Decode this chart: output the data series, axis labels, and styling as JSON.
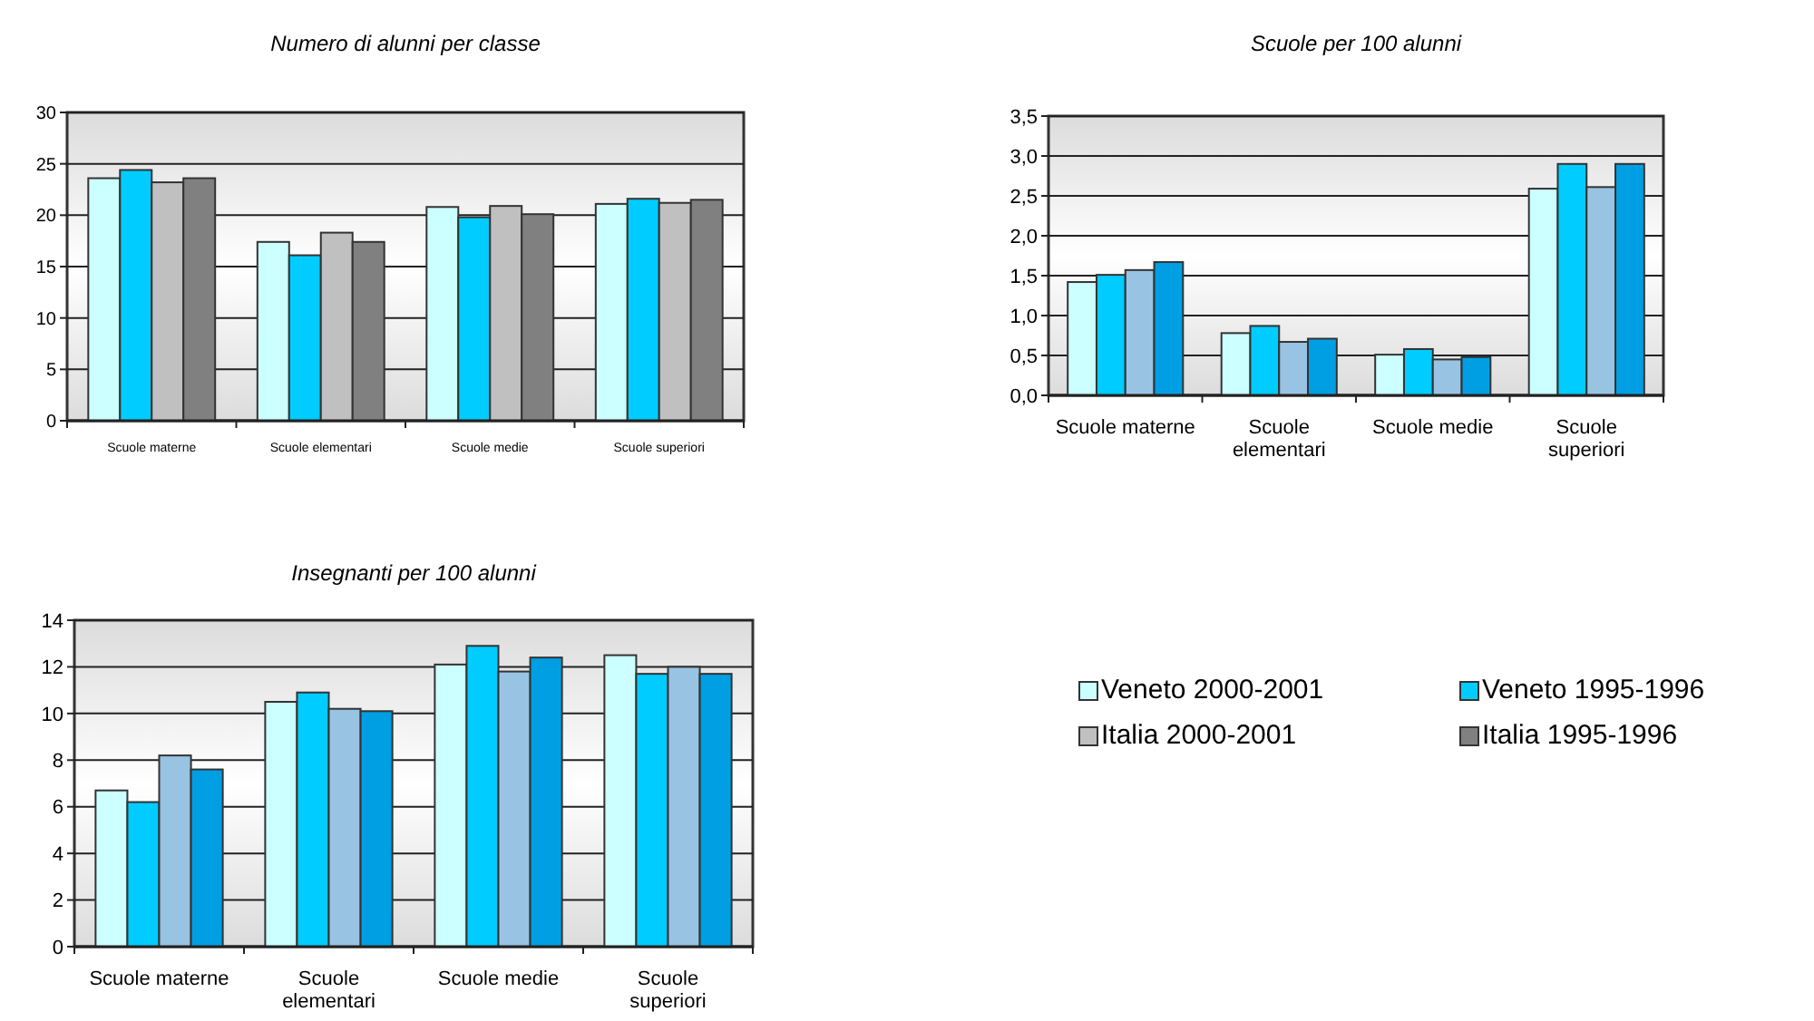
{
  "chart_data": [
    {
      "type": "bar",
      "title": "Numero di alunni per classe",
      "categories": [
        "Scuole materne",
        "Scuole elementari",
        "Scuole medie",
        "Scuole superiori"
      ],
      "series": [
        {
          "name": "Veneto 2000-2001",
          "color": "#ccffff",
          "values": [
            23.6,
            17.4,
            20.8,
            21.1
          ]
        },
        {
          "name": "Veneto 1995-1996",
          "color": "#00ccff",
          "values": [
            24.4,
            16.1,
            19.8,
            21.6
          ]
        },
        {
          "name": "Italia 2000-2001",
          "color": "#c0c0c0",
          "values": [
            23.2,
            18.3,
            20.9,
            21.2
          ]
        },
        {
          "name": "Italia 1995-1996",
          "color": "#808080",
          "values": [
            23.6,
            17.4,
            20.1,
            21.5
          ]
        }
      ],
      "ylim": [
        0,
        30
      ],
      "yticks": [
        0,
        5,
        10,
        15,
        20,
        25,
        30
      ],
      "grid": "y",
      "legend": "bottom right"
    },
    {
      "type": "bar",
      "title": "Scuole per 100 alunni",
      "categories": [
        "Scuole materne",
        "Scuole elementari",
        "Scuole medie",
        "Scuole superiori"
      ],
      "series": [
        {
          "color": "#ccffff",
          "values": [
            1.42,
            0.78,
            0.51,
            2.59
          ]
        },
        {
          "color": "#00ccff",
          "values": [
            1.51,
            0.87,
            0.58,
            2.9
          ]
        },
        {
          "color": "#99c3e3",
          "values": [
            1.57,
            0.67,
            0.45,
            2.61
          ]
        },
        {
          "color": "#009fe3",
          "values": [
            1.67,
            0.71,
            0.48,
            2.9
          ]
        }
      ],
      "ylim": [
        0,
        3.5
      ],
      "yticks": [
        {
          "value": 0,
          "label": "0,0"
        },
        {
          "value": 0.5,
          "label": "0,5"
        },
        {
          "value": 1,
          "label": "1,0"
        },
        {
          "value": 1.5,
          "label": "1,5"
        },
        {
          "value": 2,
          "label": "2,0"
        },
        {
          "value": 2.5,
          "label": "2,5"
        },
        {
          "value": 3,
          "label": "3,0"
        },
        {
          "value": 3.5,
          "label": "3,5"
        }
      ],
      "grid": "y"
    },
    {
      "type": "bar",
      "title": "Insegnanti per 100 alunni",
      "categories": [
        "Scuole materne",
        "Scuole elementari",
        "Scuole medie",
        "Scuole superiori"
      ],
      "series": [
        {
          "color": "#ccffff",
          "values": [
            6.7,
            10.5,
            12.1,
            12.5
          ]
        },
        {
          "color": "#00ccff",
          "values": [
            6.2,
            10.9,
            12.9,
            11.7
          ]
        },
        {
          "color": "#99c3e3",
          "values": [
            8.2,
            10.2,
            11.8,
            12
          ]
        },
        {
          "color": "#009fe3",
          "values": [
            7.6,
            10.1,
            12.4,
            11.7
          ]
        }
      ],
      "ylim": [
        0,
        14
      ],
      "yticks": [
        0,
        2,
        4,
        6,
        8,
        10,
        12,
        14
      ],
      "grid": "y"
    }
  ]
}
